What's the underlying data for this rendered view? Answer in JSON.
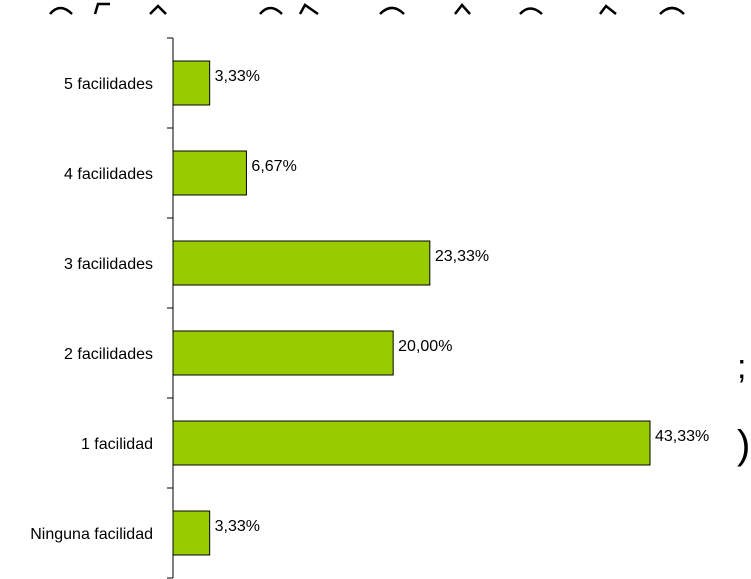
{
  "chart_data": {
    "type": "bar",
    "orientation": "horizontal",
    "categories": [
      "5 facilidades",
      "4 facilidades",
      "3 facilidades",
      "2 facilidades",
      "1 facilidad",
      "Ninguna facilidad"
    ],
    "values": [
      3.33,
      6.67,
      23.33,
      20.0,
      43.33,
      3.33
    ],
    "value_labels": [
      "3,33%",
      "6,67%",
      "23,33%",
      "20,00%",
      "43,33%",
      "3,33%"
    ],
    "xlim": [
      0,
      50
    ],
    "grid": false,
    "bar_color": "#99cc00"
  },
  "overlay_fragments": {
    "right_top": ";",
    "right_bottom": ")"
  }
}
